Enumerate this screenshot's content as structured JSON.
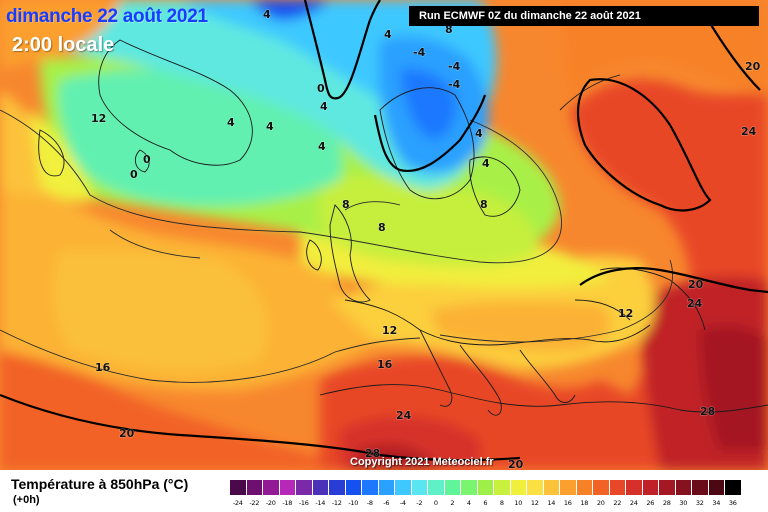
{
  "header": {
    "date": "dimanche 22 août 2021",
    "local_time": "2:00 locale",
    "run_info": "Run ECMWF 0Z du dimanche 22 août 2021"
  },
  "footer": {
    "parameter": "Température à 850hPa (°C)",
    "lead_time": "(+0h)",
    "copyright": "Copyright 2021 Meteociel.fr"
  },
  "legend": {
    "values": [
      "-24",
      "-22",
      "-20",
      "-18",
      "-16",
      "-14",
      "-12",
      "-10",
      "-8",
      "-6",
      "-4",
      "-2",
      "0",
      "2",
      "4",
      "6",
      "8",
      "10",
      "12",
      "14",
      "16",
      "18",
      "20",
      "22",
      "24",
      "26",
      "28",
      "30",
      "32",
      "34",
      "36"
    ],
    "colors": [
      "#4a0a4a",
      "#6e1070",
      "#921a95",
      "#b628b8",
      "#7a2aa8",
      "#4b30b8",
      "#2a3cd6",
      "#1550f0",
      "#1e78ff",
      "#2aa0ff",
      "#3ec8ff",
      "#5ae6f0",
      "#60f0c8",
      "#60f59a",
      "#7af570",
      "#9ef048",
      "#c8f03c",
      "#f0f03c",
      "#fbe043",
      "#fcc23a",
      "#fb9f2e",
      "#f78127",
      "#f26225",
      "#e84728",
      "#d6302a",
      "#c02028",
      "#a41824",
      "#861220",
      "#6a0c1a",
      "#4c0812",
      "#000000"
    ]
  },
  "map_labels": [
    "12",
    "0",
    "0",
    "0",
    "4",
    "4",
    "4",
    "4",
    "4",
    "4",
    "4",
    "4",
    "8",
    "8",
    "8",
    "8",
    "12",
    "12",
    "16",
    "16",
    "20",
    "20",
    "20",
    "20",
    "24",
    "24",
    "24",
    "28",
    "28",
    "-4",
    "-4",
    "-4"
  ],
  "colors": {
    "title_blue": "#1a3cff",
    "ocean_orange": "#f7872e"
  }
}
